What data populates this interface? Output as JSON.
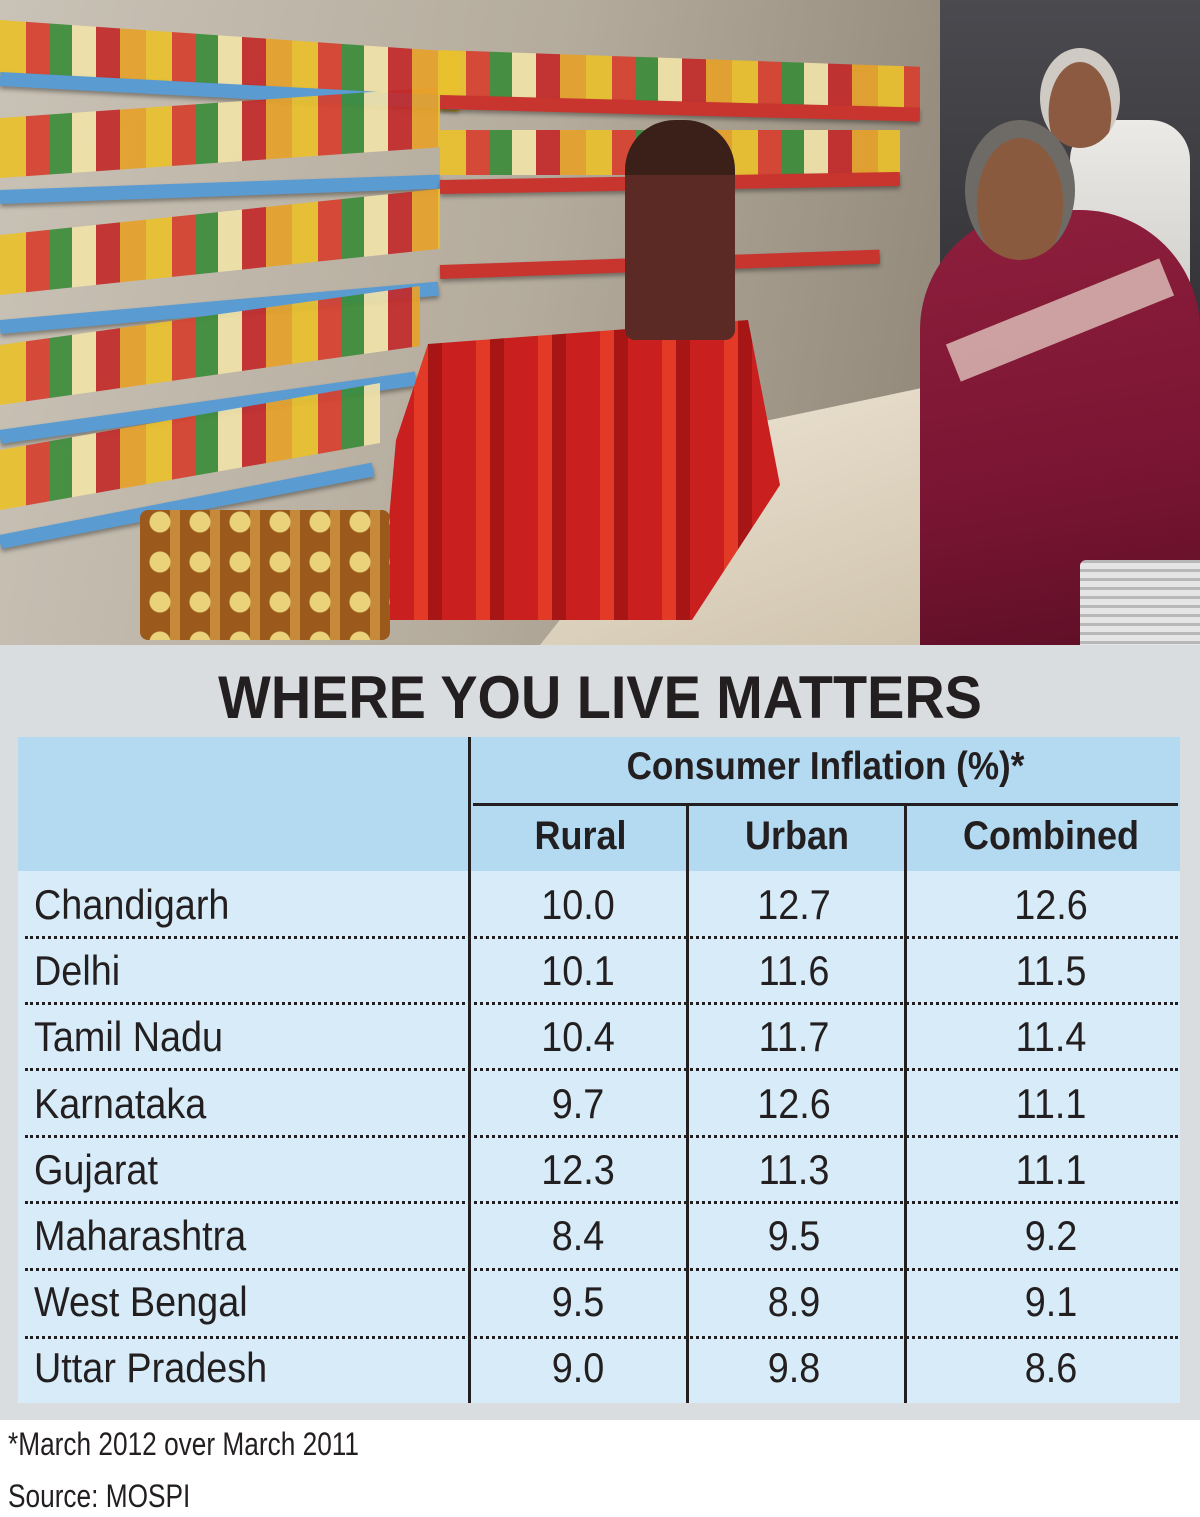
{
  "photo": {
    "description_icon": "supermarket-shoppers-photo"
  },
  "chart_data": {
    "type": "table",
    "title": "WHERE YOU LIVE MATTERS",
    "group_header": "Consumer Inflation (%)*",
    "columns": [
      "Rural",
      "Urban",
      "Combined"
    ],
    "rows": [
      {
        "state": "Chandigarh",
        "values": [
          "10.0",
          "12.7",
          "12.6"
        ]
      },
      {
        "state": "Delhi",
        "values": [
          "10.1",
          "11.6",
          "11.5"
        ]
      },
      {
        "state": "Tamil Nadu",
        "values": [
          "10.4",
          "11.7",
          "11.4"
        ]
      },
      {
        "state": "Karnataka",
        "values": [
          "9.7",
          "12.6",
          "11.1"
        ]
      },
      {
        "state": "Gujarat",
        "values": [
          "12.3",
          "11.3",
          "11.1"
        ]
      },
      {
        "state": "Maharashtra",
        "values": [
          "8.4",
          "9.5",
          "9.2"
        ]
      },
      {
        "state": "West Bengal",
        "values": [
          "9.5",
          "8.9",
          "9.1"
        ]
      },
      {
        "state": "Uttar Pradesh",
        "values": [
          "9.0",
          "9.8",
          "8.6"
        ]
      }
    ]
  },
  "footnotes": {
    "note": "*March 2012 over March 2011",
    "source": "Source: MOSPI"
  },
  "colors": {
    "header_bg": "#b4daf1",
    "body_bg": "#d7ecf8",
    "panel_bg": "#d9dde0",
    "text": "#231f20"
  }
}
